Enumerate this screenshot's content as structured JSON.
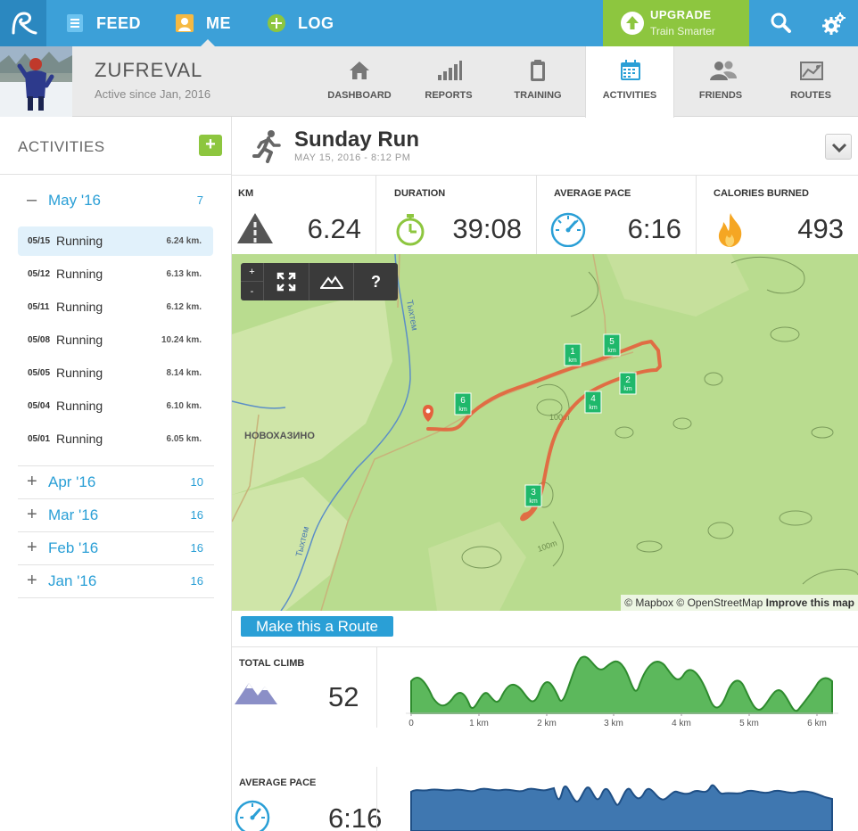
{
  "nav": {
    "feed": "FEED",
    "me": "ME",
    "log": "LOG",
    "upgrade_title": "UPGRADE",
    "upgrade_subtitle": "Train Smarter"
  },
  "profile": {
    "username": "ZUFREVAL",
    "since": "Active since Jan, 2016",
    "tabs": [
      {
        "label": "DASHBOARD",
        "icon": "home-icon"
      },
      {
        "label": "REPORTS",
        "icon": "bar-chart-icon"
      },
      {
        "label": "TRAINING",
        "icon": "clipboard-icon"
      },
      {
        "label": "ACTIVITIES",
        "icon": "calendar-icon",
        "active": true
      },
      {
        "label": "FRIENDS",
        "icon": "people-icon"
      },
      {
        "label": "ROUTES",
        "icon": "map-icon"
      }
    ]
  },
  "sidebar": {
    "title": "ACTIVITIES",
    "add_label": "+",
    "expanded_month": {
      "sign": "–",
      "label": "May '16",
      "count": "7"
    },
    "activities": [
      {
        "date": "05/15",
        "type": "Running",
        "distance": "6.24 km."
      },
      {
        "date": "05/12",
        "type": "Running",
        "distance": "6.13 km."
      },
      {
        "date": "05/11",
        "type": "Running",
        "distance": "6.12 km."
      },
      {
        "date": "05/08",
        "type": "Running",
        "distance": "10.24 km."
      },
      {
        "date": "05/05",
        "type": "Running",
        "distance": "8.14 km."
      },
      {
        "date": "05/04",
        "type": "Running",
        "distance": "6.10 km."
      },
      {
        "date": "05/01",
        "type": "Running",
        "distance": "6.05 km."
      }
    ],
    "collapsed_months": [
      {
        "sign": "+",
        "label": "Apr '16",
        "count": "10"
      },
      {
        "sign": "+",
        "label": "Mar '16",
        "count": "16"
      },
      {
        "sign": "+",
        "label": "Feb '16",
        "count": "16"
      },
      {
        "sign": "+",
        "label": "Jan '16",
        "count": "16"
      }
    ]
  },
  "activity": {
    "title": "Sunday Run",
    "date": "MAY 15, 2016  -  8:12 PM",
    "stats": [
      {
        "label": "KM",
        "value": "6.24",
        "icon": "warning-road-icon"
      },
      {
        "label": "DURATION",
        "value": "39:08",
        "icon": "stopwatch-icon"
      },
      {
        "label": "AVERAGE PACE",
        "value": "6:16",
        "icon": "speedometer-icon"
      },
      {
        "label": "CALORIES BURNED",
        "value": "493",
        "icon": "flame-icon"
      }
    ]
  },
  "map": {
    "zoom_in": "+",
    "zoom_out": "-",
    "help": "?",
    "place_label": "НОВОХАЗИНО",
    "river_label_1": "Тыхтем",
    "river_label_2": "Тыхтем",
    "contour_label_1": "100m",
    "contour_label_2": "100m",
    "km_markers": [
      "1",
      "2",
      "3",
      "4",
      "5",
      "6"
    ],
    "km_unit": "km",
    "attribution_1": "© Mapbox",
    "attribution_2": "© OpenStreetMap",
    "attribution_3": "Improve this map",
    "route_color": "#e4603c"
  },
  "route_button": "Make this a Route",
  "climb": {
    "label": "TOTAL CLIMB",
    "value": "52",
    "x_ticks": [
      "0",
      "1 km",
      "2 km",
      "3 km",
      "4 km",
      "5 km",
      "6 km"
    ],
    "color": "#5cb85c"
  },
  "pace": {
    "label": "AVERAGE PACE",
    "value": "6:16",
    "color": "#3f77b0"
  }
}
